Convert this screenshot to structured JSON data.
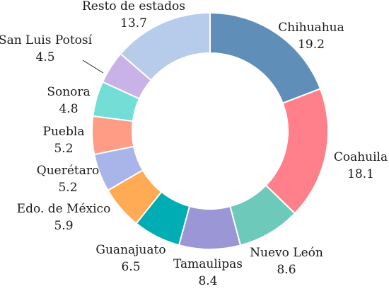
{
  "chart_data": {
    "type": "pie",
    "variant": "donut",
    "title": "",
    "start_angle_deg": 0,
    "direction": "clockwise",
    "series": [
      {
        "name": "Chihuahua",
        "value": 19.2,
        "color": "#5f8fb8"
      },
      {
        "name": "Coahuila",
        "value": 18.1,
        "color": "#ff7f8a"
      },
      {
        "name": "Nuevo León",
        "value": 8.6,
        "color": "#6dcabb"
      },
      {
        "name": "Tamaulipas",
        "value": 8.4,
        "color": "#9b97d6"
      },
      {
        "name": "Guanajuato",
        "value": 6.5,
        "color": "#00adb5"
      },
      {
        "name": "Edo. de México",
        "value": 5.9,
        "color": "#ffaa55"
      },
      {
        "name": "Querétaro",
        "value": 5.2,
        "color": "#a9b4e8"
      },
      {
        "name": "Puebla",
        "value": 5.2,
        "color": "#ff9c85"
      },
      {
        "name": "Sonora",
        "value": 4.8,
        "color": "#72ded6"
      },
      {
        "name": "San Luis Potosí",
        "value": 4.5,
        "color": "#c9b2e8"
      },
      {
        "name": "Resto de estados",
        "value": 13.7,
        "color": "#b7cbea"
      }
    ]
  }
}
